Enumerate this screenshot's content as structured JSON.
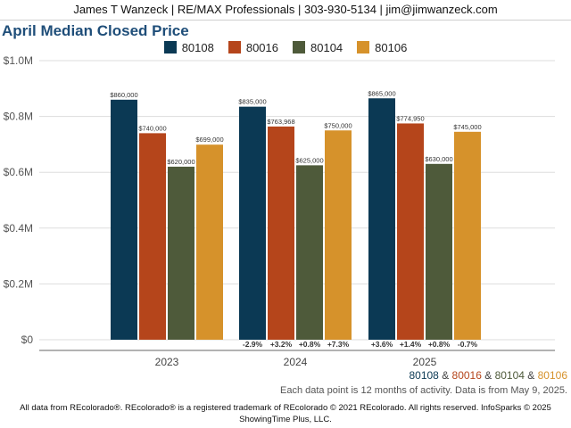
{
  "header": {
    "text": "James T Wanzeck | RE/MAX Professionals | 303-930-5134 | jim@jimwanzeck.com"
  },
  "chart_data": {
    "type": "bar",
    "title": "April Median Closed Price",
    "categories": [
      "2023",
      "2024",
      "2025"
    ],
    "series": [
      {
        "name": "80108",
        "color": "#0b3954",
        "values": [
          860000,
          835000,
          865000
        ],
        "labels": [
          "$860,000",
          "$835,000",
          "$865,000"
        ],
        "changes": [
          "",
          "-2.9%",
          "+3.6%"
        ]
      },
      {
        "name": "80016",
        "color": "#b5451b",
        "values": [
          740000,
          763968,
          774950
        ],
        "labels": [
          "$740,000",
          "$763,968",
          "$774,950"
        ],
        "changes": [
          "",
          "+3.2%",
          "+1.4%"
        ]
      },
      {
        "name": "80104",
        "color": "#4e5a3a",
        "values": [
          620000,
          625000,
          630000
        ],
        "labels": [
          "$620,000",
          "$625,000",
          "$630,000"
        ],
        "changes": [
          "",
          "+0.8%",
          "+0.8%"
        ]
      },
      {
        "name": "80106",
        "color": "#d6922b",
        "values": [
          699000,
          750000,
          745000
        ],
        "labels": [
          "$699,000",
          "$750,000",
          "$745,000"
        ],
        "changes": [
          "",
          "+7.3%",
          "-0.7%"
        ]
      }
    ],
    "ylim": [
      0,
      1000000
    ],
    "yticks": [
      {
        "value": 0,
        "label": "$0"
      },
      {
        "value": 200000,
        "label": "$0.2M"
      },
      {
        "value": 400000,
        "label": "$0.4M"
      },
      {
        "value": 600000,
        "label": "$0.6M"
      },
      {
        "value": 800000,
        "label": "$0.8M"
      },
      {
        "value": 1000000,
        "label": "$1.0M"
      }
    ],
    "grid": true,
    "legend": "top-center"
  },
  "zip_legend": [
    {
      "text": "80108",
      "color": "#0b3954"
    },
    {
      "text": " & ",
      "color": "#444444"
    },
    {
      "text": "80016",
      "color": "#b5451b"
    },
    {
      "text": " & ",
      "color": "#444444"
    },
    {
      "text": "80104",
      "color": "#4e5a3a"
    },
    {
      "text": " & ",
      "color": "#444444"
    },
    {
      "text": "80106",
      "color": "#d6922b"
    }
  ],
  "note": "Each data point is 12 months of activity. Data is from May 9, 2025.",
  "footer": {
    "line1": "All data from REcolorado®. REcolorado® is a registered trademark of REcolorado © 2021 REcolorado. All rights reserved. InfoSparks © 2025",
    "line2": "ShowingTime Plus, LLC."
  }
}
